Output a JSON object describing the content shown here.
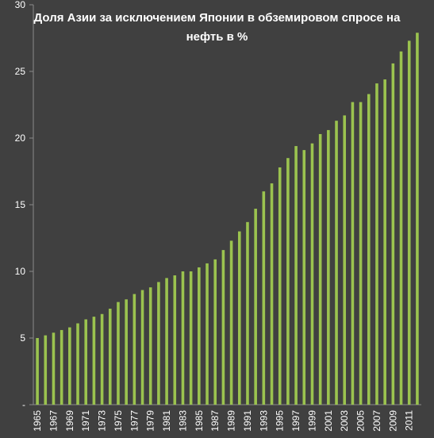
{
  "chart_data": {
    "type": "bar",
    "title_lines": [
      "Доля Азии за исключением Японии в обземировом спросе на",
      "нефть в %"
    ],
    "xlabel": "",
    "ylabel": "",
    "ylim": [
      0,
      30
    ],
    "yticks": [
      "-",
      "5",
      "10",
      "15",
      "20",
      "25",
      "30"
    ],
    "grid": false,
    "legend": "none",
    "bar_color": "#9bc34f",
    "categories": [
      "1965",
      "1966",
      "1967",
      "1968",
      "1969",
      "1970",
      "1971",
      "1972",
      "1973",
      "1974",
      "1975",
      "1976",
      "1977",
      "1978",
      "1979",
      "1980",
      "1981",
      "1982",
      "1983",
      "1984",
      "1985",
      "1986",
      "1987",
      "1988",
      "1989",
      "1990",
      "1991",
      "1992",
      "1993",
      "1994",
      "1995",
      "1996",
      "1997",
      "1998",
      "1999",
      "2000",
      "2001",
      "2002",
      "2003",
      "2004",
      "2005",
      "2006",
      "2007",
      "2008",
      "2009",
      "2010",
      "2011",
      "2012"
    ],
    "xtick_labels": [
      "1965",
      "",
      "1967",
      "",
      "1969",
      "",
      "1971",
      "",
      "1973",
      "",
      "1975",
      "",
      "1977",
      "",
      "1979",
      "",
      "1981",
      "",
      "1983",
      "",
      "1985",
      "",
      "1987",
      "",
      "1989",
      "",
      "1991",
      "",
      "1993",
      "",
      "1995",
      "",
      "1997",
      "",
      "1999",
      "",
      "2001",
      "",
      "2003",
      "",
      "2005",
      "",
      "2007",
      "",
      "2009",
      "",
      "2011",
      ""
    ],
    "values": [
      5.0,
      5.2,
      5.4,
      5.6,
      5.8,
      6.1,
      6.4,
      6.6,
      6.8,
      7.2,
      7.7,
      7.9,
      8.3,
      8.6,
      8.8,
      9.2,
      9.5,
      9.7,
      10.0,
      10.0,
      10.3,
      10.6,
      10.9,
      11.6,
      12.3,
      13.0,
      13.7,
      14.7,
      16.0,
      16.6,
      17.8,
      18.5,
      19.4,
      19.1,
      19.6,
      20.3,
      20.6,
      21.3,
      21.7,
      22.7,
      22.7,
      23.3,
      24.1,
      24.4,
      25.6,
      26.5,
      27.3,
      27.9
    ]
  }
}
